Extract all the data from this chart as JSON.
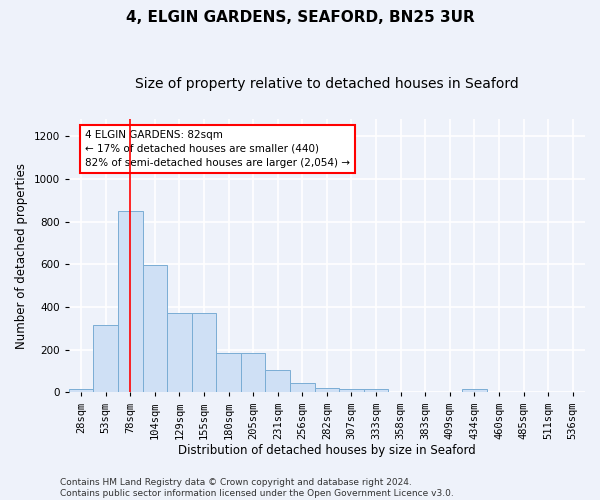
{
  "title_line1": "4, ELGIN GARDENS, SEAFORD, BN25 3UR",
  "title_line2": "Size of property relative to detached houses in Seaford",
  "xlabel": "Distribution of detached houses by size in Seaford",
  "ylabel": "Number of detached properties",
  "categories": [
    "28sqm",
    "53sqm",
    "78sqm",
    "104sqm",
    "129sqm",
    "155sqm",
    "180sqm",
    "205sqm",
    "231sqm",
    "256sqm",
    "282sqm",
    "307sqm",
    "333sqm",
    "358sqm",
    "383sqm",
    "409sqm",
    "434sqm",
    "460sqm",
    "485sqm",
    "511sqm",
    "536sqm"
  ],
  "values": [
    15,
    315,
    850,
    595,
    370,
    370,
    185,
    185,
    105,
    45,
    20,
    15,
    15,
    0,
    0,
    0,
    15,
    0,
    0,
    0,
    0
  ],
  "bar_color": "#cfe0f5",
  "bar_edge_color": "#7aadd4",
  "red_line_x": 2,
  "annotation_text": "4 ELGIN GARDENS: 82sqm\n← 17% of detached houses are smaller (440)\n82% of semi-detached houses are larger (2,054) →",
  "annotation_box_color": "white",
  "annotation_box_edge_color": "red",
  "red_line_color": "red",
  "ylim": [
    0,
    1280
  ],
  "yticks": [
    0,
    200,
    400,
    600,
    800,
    1000,
    1200
  ],
  "footer_line1": "Contains HM Land Registry data © Crown copyright and database right 2024.",
  "footer_line2": "Contains public sector information licensed under the Open Government Licence v3.0.",
  "background_color": "#eef2fa",
  "grid_color": "#ffffff",
  "title_fontsize": 11,
  "subtitle_fontsize": 10,
  "axis_label_fontsize": 8.5,
  "tick_fontsize": 7.5,
  "footer_fontsize": 6.5,
  "annot_fontsize": 7.5
}
